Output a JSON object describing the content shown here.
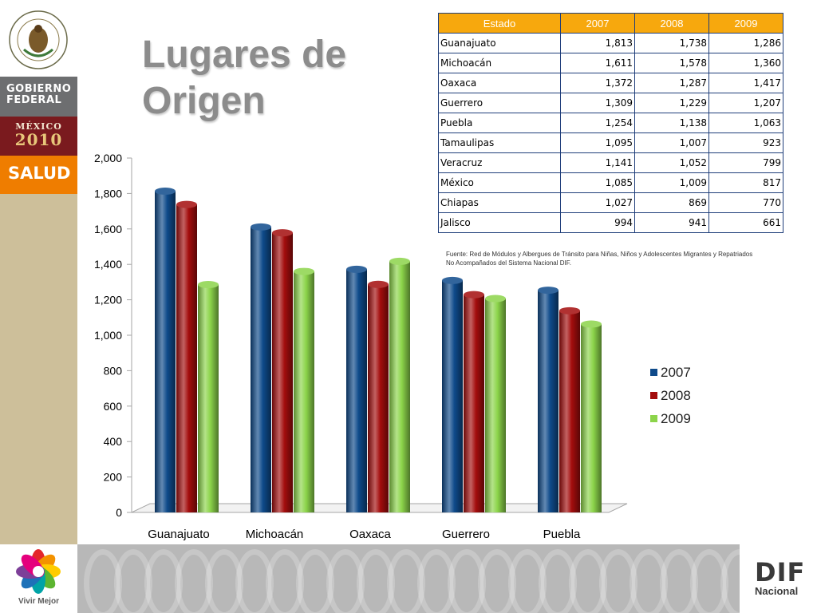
{
  "branding": {
    "gobierno_line1": "GOBIERNO",
    "gobierno_line2": "FEDERAL",
    "mexico_label": "MÉXICO",
    "mexico_year": "2010",
    "salud_label": "SALUD",
    "vivir_label": "Vivir Mejor",
    "dif_label": "DIF",
    "nacional_label": "Nacional",
    "seal_icon": "national-seal-icon"
  },
  "slide": {
    "title_line1": "Lugares de",
    "title_line2": "Origen"
  },
  "table": {
    "headers": [
      "Estado",
      "2007",
      "2008",
      "2009"
    ],
    "rows": [
      [
        "Guanajuato",
        "1,813",
        "1,738",
        "1,286"
      ],
      [
        "Michoacán",
        "1,611",
        "1,578",
        "1,360"
      ],
      [
        "Oaxaca",
        "1,372",
        "1,287",
        "1,417"
      ],
      [
        "Guerrero",
        "1,309",
        "1,229",
        "1,207"
      ],
      [
        "Puebla",
        "1,254",
        "1,138",
        "1,063"
      ],
      [
        "Tamaulipas",
        "1,095",
        "1,007",
        "923"
      ],
      [
        "Veracruz",
        "1,141",
        "1,052",
        "799"
      ],
      [
        "México",
        "1,085",
        "1,009",
        "817"
      ],
      [
        "Chiapas",
        "1,027",
        "869",
        "770"
      ],
      [
        "Jalisco",
        "994",
        "941",
        "661"
      ]
    ],
    "source_line1": "Fuente: Red de Módulos y Albergues de Tránsito para Niñas, Niños y Adolescentes Migrantes y Repatriados",
    "source_line2": "No Acompañados del Sistema Nacional DIF."
  },
  "colors": {
    "header_bg": "#f7a80d",
    "table_border": "#1f3e7a",
    "salud_orange": "#ef7d00",
    "gobierno_gray": "#6d6e70",
    "mexico_maroon": "#7a1a1e",
    "sidebar_tan": "#cdbf9a"
  },
  "chart_data": {
    "type": "bar",
    "style": "3d-cylinder",
    "categories": [
      "Guanajuato",
      "Michoacán",
      "Oaxaca",
      "Guerrero",
      "Puebla"
    ],
    "series": [
      {
        "name": "2007",
        "color": "#0e4a8a",
        "values": [
          1813,
          1611,
          1372,
          1309,
          1254
        ]
      },
      {
        "name": "2008",
        "color": "#a30d0d",
        "values": [
          1738,
          1578,
          1287,
          1229,
          1138
        ]
      },
      {
        "name": "2009",
        "color": "#8cd44a",
        "values": [
          1286,
          1360,
          1417,
          1207,
          1063
        ]
      }
    ],
    "yticks": [
      "0",
      "200",
      "400",
      "600",
      "800",
      "1,000",
      "1,200",
      "1,400",
      "1,600",
      "1,800",
      "2,000"
    ],
    "ylim": [
      0,
      2000
    ],
    "legend_position": "right",
    "grid": false
  }
}
